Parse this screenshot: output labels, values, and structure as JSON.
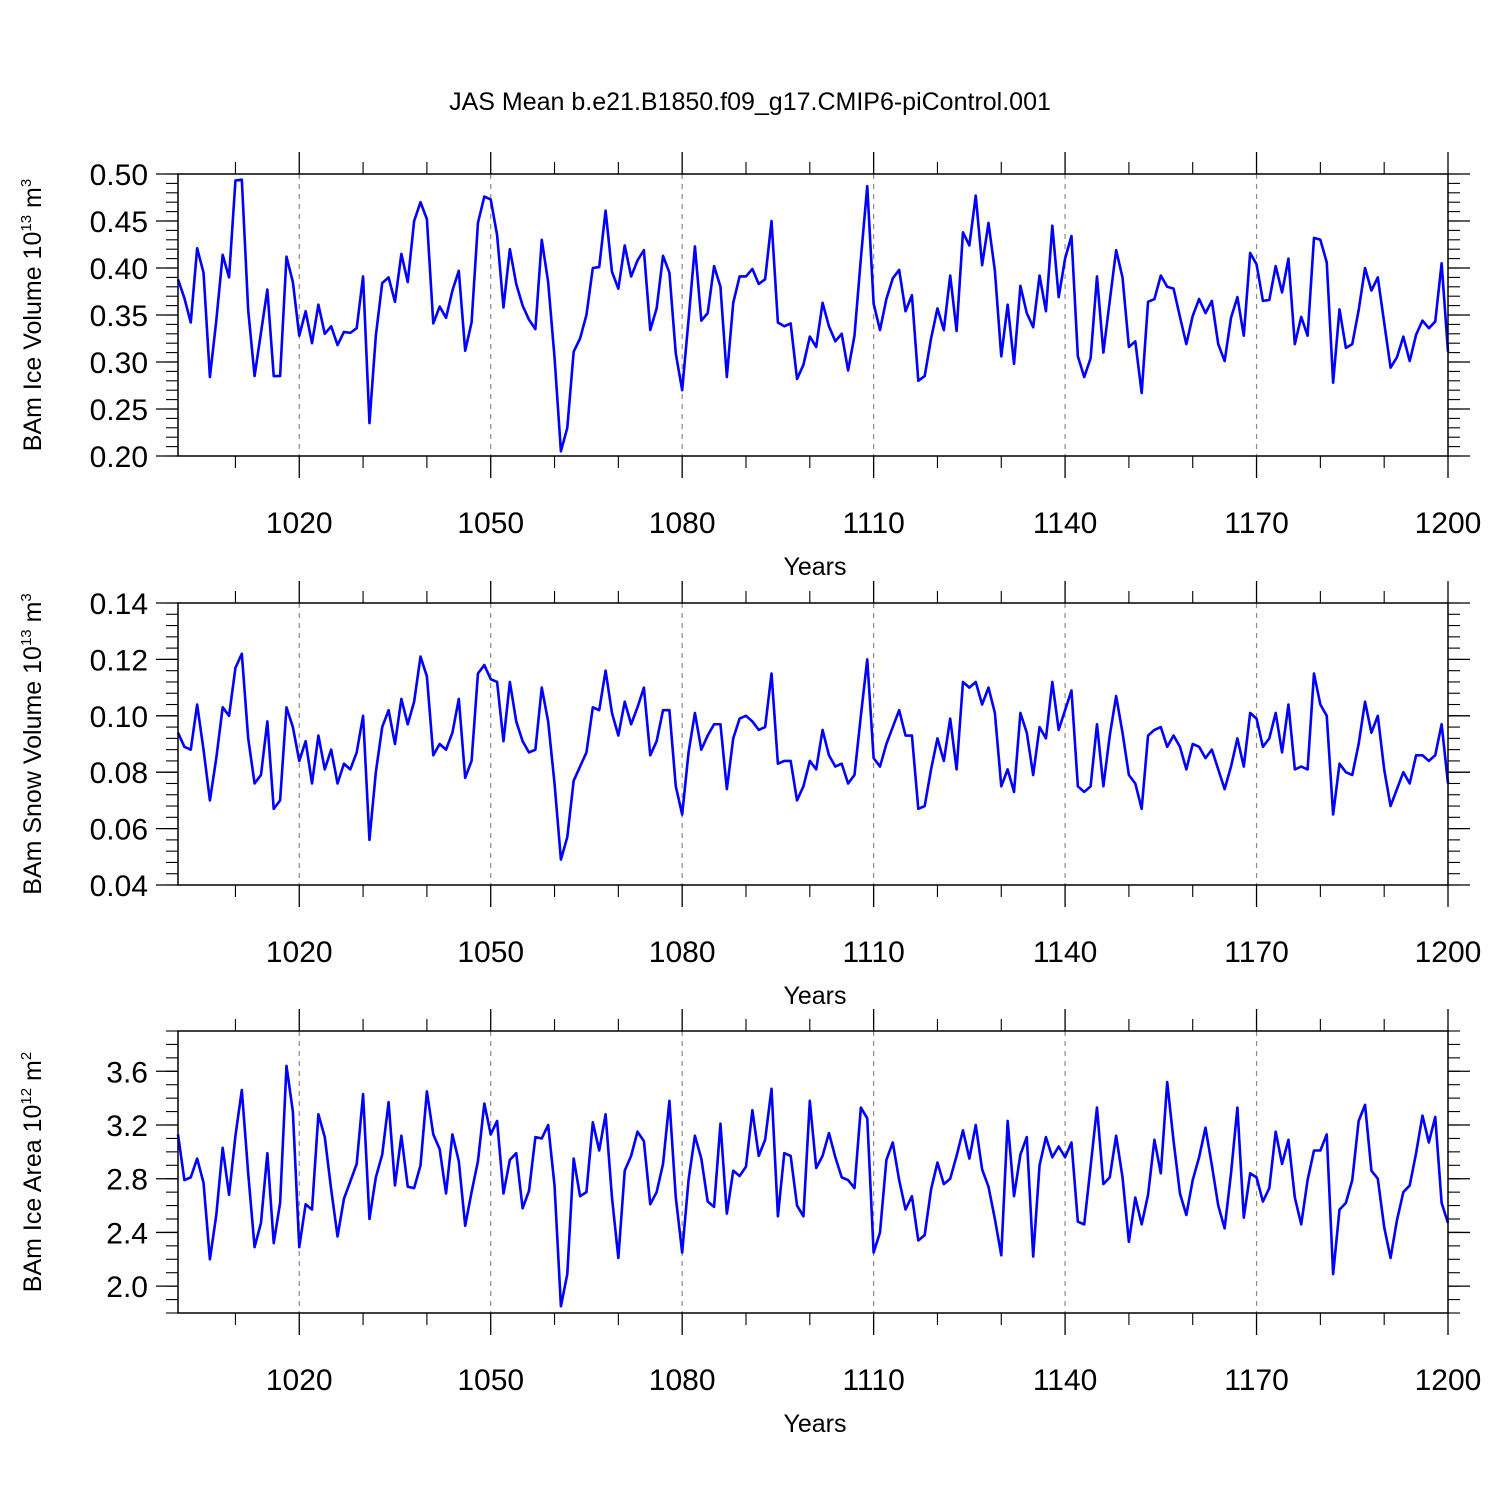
{
  "figure_title": "JAS Mean b.e21.B1850.f09_g17.CMIP6-piControl.001",
  "line_color": "#0000ff",
  "chart_data": [
    {
      "type": "line",
      "title": "JAS Mean b.e21.B1850.f09_g17.CMIP6-piControl.001",
      "xlabel": "Years",
      "ylabel": {
        "base": "BAm Ice Volume 10",
        "exp": "13",
        "unit": " m",
        "unit_exp": "3"
      },
      "xlim": [
        1001,
        1200
      ],
      "ylim": [
        0.2,
        0.5
      ],
      "xticks": [
        1020,
        1050,
        1080,
        1110,
        1140,
        1170,
        1200
      ],
      "xtick_labels": [
        "1020",
        "1050",
        "1080",
        "1110",
        "1140",
        "1170",
        "1200"
      ],
      "yticks": [
        0.2,
        0.25,
        0.3,
        0.35,
        0.4,
        0.45,
        0.5
      ],
      "ytick_labels": [
        "0.20",
        "0.25",
        "0.30",
        "0.35",
        "0.40",
        "0.45",
        "0.50"
      ],
      "y_minor_step": 0.01,
      "grid": "dashed vertical at x ticks",
      "series": [
        {
          "name": "BAm Ice Volume",
          "x_start": 1001,
          "values": [
            0.388,
            0.368,
            0.342,
            0.421,
            0.395,
            0.284,
            0.344,
            0.414,
            0.39,
            0.493,
            0.494,
            0.355,
            0.285,
            0.331,
            0.377,
            0.285,
            0.285,
            0.412,
            0.385,
            0.328,
            0.354,
            0.32,
            0.361,
            0.33,
            0.338,
            0.318,
            0.332,
            0.331,
            0.336,
            0.391,
            0.235,
            0.328,
            0.384,
            0.39,
            0.364,
            0.415,
            0.385,
            0.45,
            0.47,
            0.452,
            0.341,
            0.359,
            0.347,
            0.376,
            0.397,
            0.312,
            0.342,
            0.448,
            0.476,
            0.473,
            0.435,
            0.358,
            0.42,
            0.383,
            0.36,
            0.345,
            0.335,
            0.43,
            0.385,
            0.305,
            0.205,
            0.23,
            0.311,
            0.325,
            0.35,
            0.4,
            0.401,
            0.461,
            0.396,
            0.378,
            0.424,
            0.391,
            0.408,
            0.419,
            0.334,
            0.357,
            0.413,
            0.395,
            0.309,
            0.27,
            0.345,
            0.423,
            0.344,
            0.352,
            0.402,
            0.38,
            0.284,
            0.363,
            0.391,
            0.391,
            0.399,
            0.383,
            0.388,
            0.45,
            0.342,
            0.338,
            0.341,
            0.282,
            0.297,
            0.327,
            0.316,
            0.363,
            0.338,
            0.322,
            0.33,
            0.291,
            0.328,
            0.41,
            0.487,
            0.362,
            0.334,
            0.367,
            0.389,
            0.398,
            0.354,
            0.371,
            0.28,
            0.285,
            0.325,
            0.357,
            0.334,
            0.392,
            0.333,
            0.438,
            0.424,
            0.477,
            0.403,
            0.448,
            0.397,
            0.306,
            0.361,
            0.298,
            0.381,
            0.352,
            0.337,
            0.392,
            0.354,
            0.445,
            0.369,
            0.41,
            0.434,
            0.306,
            0.284,
            0.304,
            0.391,
            0.31,
            0.365,
            0.419,
            0.39,
            0.316,
            0.322,
            0.267,
            0.364,
            0.367,
            0.392,
            0.38,
            0.378,
            0.348,
            0.319,
            0.349,
            0.367,
            0.352,
            0.365,
            0.319,
            0.301,
            0.347,
            0.369,
            0.328,
            0.416,
            0.404,
            0.365,
            0.366,
            0.402,
            0.374,
            0.41,
            0.319,
            0.348,
            0.328,
            0.432,
            0.43,
            0.406,
            0.278,
            0.356,
            0.315,
            0.319,
            0.355,
            0.4,
            0.376,
            0.39,
            0.342,
            0.294,
            0.305,
            0.327,
            0.301,
            0.329,
            0.344,
            0.336,
            0.343,
            0.405,
            0.311
          ]
        }
      ]
    },
    {
      "type": "line",
      "xlabel": "Years",
      "ylabel": {
        "base": "BAm Snow Volume 10",
        "exp": "13",
        "unit": " m",
        "unit_exp": "3"
      },
      "xlim": [
        1001,
        1200
      ],
      "ylim": [
        0.04,
        0.14
      ],
      "xticks": [
        1020,
        1050,
        1080,
        1110,
        1140,
        1170,
        1200
      ],
      "xtick_labels": [
        "1020",
        "1050",
        "1080",
        "1110",
        "1140",
        "1170",
        "1200"
      ],
      "yticks": [
        0.04,
        0.06,
        0.08,
        0.1,
        0.12,
        0.14
      ],
      "ytick_labels": [
        "0.04",
        "0.06",
        "0.08",
        "0.10",
        "0.12",
        "0.14"
      ],
      "y_minor_step": 0.004,
      "grid": "dashed vertical at x ticks",
      "series": [
        {
          "name": "BAm Snow Volume",
          "x_start": 1001,
          "values": [
            0.094,
            0.089,
            0.088,
            0.104,
            0.088,
            0.07,
            0.085,
            0.103,
            0.1,
            0.117,
            0.122,
            0.092,
            0.076,
            0.079,
            0.098,
            0.067,
            0.07,
            0.103,
            0.096,
            0.084,
            0.091,
            0.076,
            0.093,
            0.081,
            0.088,
            0.076,
            0.083,
            0.081,
            0.087,
            0.1,
            0.056,
            0.08,
            0.096,
            0.102,
            0.09,
            0.106,
            0.097,
            0.105,
            0.121,
            0.114,
            0.086,
            0.09,
            0.088,
            0.094,
            0.106,
            0.078,
            0.084,
            0.115,
            0.118,
            0.113,
            0.112,
            0.091,
            0.112,
            0.098,
            0.091,
            0.087,
            0.088,
            0.11,
            0.098,
            0.076,
            0.049,
            0.057,
            0.077,
            0.082,
            0.087,
            0.103,
            0.102,
            0.116,
            0.101,
            0.093,
            0.105,
            0.097,
            0.103,
            0.11,
            0.086,
            0.091,
            0.102,
            0.102,
            0.075,
            0.065,
            0.087,
            0.101,
            0.088,
            0.093,
            0.097,
            0.097,
            0.074,
            0.092,
            0.099,
            0.1,
            0.098,
            0.095,
            0.096,
            0.115,
            0.083,
            0.084,
            0.084,
            0.07,
            0.075,
            0.084,
            0.081,
            0.095,
            0.086,
            0.082,
            0.083,
            0.076,
            0.079,
            0.1,
            0.12,
            0.085,
            0.082,
            0.09,
            0.096,
            0.102,
            0.093,
            0.093,
            0.067,
            0.068,
            0.081,
            0.092,
            0.084,
            0.099,
            0.081,
            0.112,
            0.11,
            0.112,
            0.104,
            0.11,
            0.101,
            0.075,
            0.081,
            0.073,
            0.101,
            0.094,
            0.079,
            0.096,
            0.092,
            0.112,
            0.095,
            0.102,
            0.109,
            0.075,
            0.073,
            0.075,
            0.097,
            0.075,
            0.093,
            0.107,
            0.094,
            0.079,
            0.076,
            0.067,
            0.093,
            0.095,
            0.096,
            0.089,
            0.093,
            0.089,
            0.081,
            0.09,
            0.089,
            0.085,
            0.088,
            0.081,
            0.074,
            0.082,
            0.092,
            0.082,
            0.101,
            0.099,
            0.089,
            0.092,
            0.101,
            0.087,
            0.104,
            0.081,
            0.082,
            0.081,
            0.115,
            0.104,
            0.1,
            0.065,
            0.083,
            0.08,
            0.079,
            0.09,
            0.105,
            0.094,
            0.1,
            0.081,
            0.068,
            0.074,
            0.08,
            0.076,
            0.086,
            0.086,
            0.084,
            0.086,
            0.097,
            0.076
          ]
        }
      ]
    },
    {
      "type": "line",
      "xlabel": "Years",
      "ylabel": {
        "base": "BAm Ice Area 10",
        "exp": "12",
        "unit": " m",
        "unit_exp": "2"
      },
      "xlim": [
        1001,
        1200
      ],
      "ylim": [
        1.8,
        3.9
      ],
      "xticks": [
        1020,
        1050,
        1080,
        1110,
        1140,
        1170,
        1200
      ],
      "xtick_labels": [
        "1020",
        "1050",
        "1080",
        "1110",
        "1140",
        "1170",
        "1200"
      ],
      "yticks": [
        2.0,
        2.4,
        2.8,
        3.2,
        3.6
      ],
      "ytick_labels": [
        "2.0",
        "2.4",
        "2.8",
        "3.2",
        "3.6"
      ],
      "y_minor_step": 0.1,
      "grid": "dashed vertical at x ticks",
      "series": [
        {
          "name": "BAm Ice Area",
          "x_start": 1001,
          "values": [
            3.13,
            2.79,
            2.81,
            2.95,
            2.77,
            2.2,
            2.53,
            3.03,
            2.68,
            3.12,
            3.46,
            2.84,
            2.29,
            2.47,
            2.99,
            2.32,
            2.62,
            3.64,
            3.3,
            2.29,
            2.61,
            2.57,
            3.28,
            3.11,
            2.72,
            2.37,
            2.65,
            2.78,
            2.91,
            3.43,
            2.5,
            2.81,
            2.98,
            3.37,
            2.75,
            3.12,
            2.74,
            2.73,
            2.9,
            3.45,
            3.13,
            3.02,
            2.69,
            3.13,
            2.93,
            2.45,
            2.7,
            2.93,
            3.36,
            3.13,
            3.23,
            2.69,
            2.94,
            2.99,
            2.58,
            2.71,
            3.11,
            3.1,
            3.2,
            2.75,
            1.85,
            2.09,
            2.95,
            2.67,
            2.7,
            3.22,
            3.01,
            3.28,
            2.66,
            2.21,
            2.86,
            2.97,
            3.15,
            3.08,
            2.61,
            2.7,
            2.91,
            3.38,
            2.66,
            2.25,
            2.79,
            3.12,
            2.95,
            2.63,
            2.59,
            3.21,
            2.54,
            2.86,
            2.82,
            2.89,
            3.31,
            2.97,
            3.09,
            3.47,
            2.52,
            2.99,
            2.97,
            2.6,
            2.52,
            3.38,
            2.88,
            2.97,
            3.14,
            2.96,
            2.81,
            2.79,
            2.73,
            3.33,
            3.25,
            2.25,
            2.4,
            2.94,
            3.07,
            2.79,
            2.57,
            2.67,
            2.34,
            2.38,
            2.72,
            2.92,
            2.76,
            2.8,
            2.97,
            3.16,
            2.95,
            3.2,
            2.87,
            2.74,
            2.5,
            2.23,
            3.23,
            2.67,
            2.98,
            3.11,
            2.22,
            2.9,
            3.11,
            2.96,
            3.04,
            2.96,
            3.07,
            2.48,
            2.46,
            2.89,
            3.33,
            2.76,
            2.81,
            3.12,
            2.81,
            2.33,
            2.66,
            2.46,
            2.68,
            3.09,
            2.84,
            3.52,
            3.08,
            2.69,
            2.53,
            2.79,
            2.96,
            3.18,
            2.9,
            2.6,
            2.43,
            2.84,
            3.33,
            2.51,
            2.84,
            2.81,
            2.63,
            2.73,
            3.15,
            2.91,
            3.09,
            2.66,
            2.46,
            2.79,
            3.01,
            3.01,
            3.13,
            2.09,
            2.57,
            2.62,
            2.79,
            3.23,
            3.35,
            2.86,
            2.8,
            2.44,
            2.21,
            2.49,
            2.7,
            2.75,
            2.99,
            3.27,
            3.07,
            3.26,
            2.62,
            2.47
          ]
        }
      ]
    }
  ]
}
